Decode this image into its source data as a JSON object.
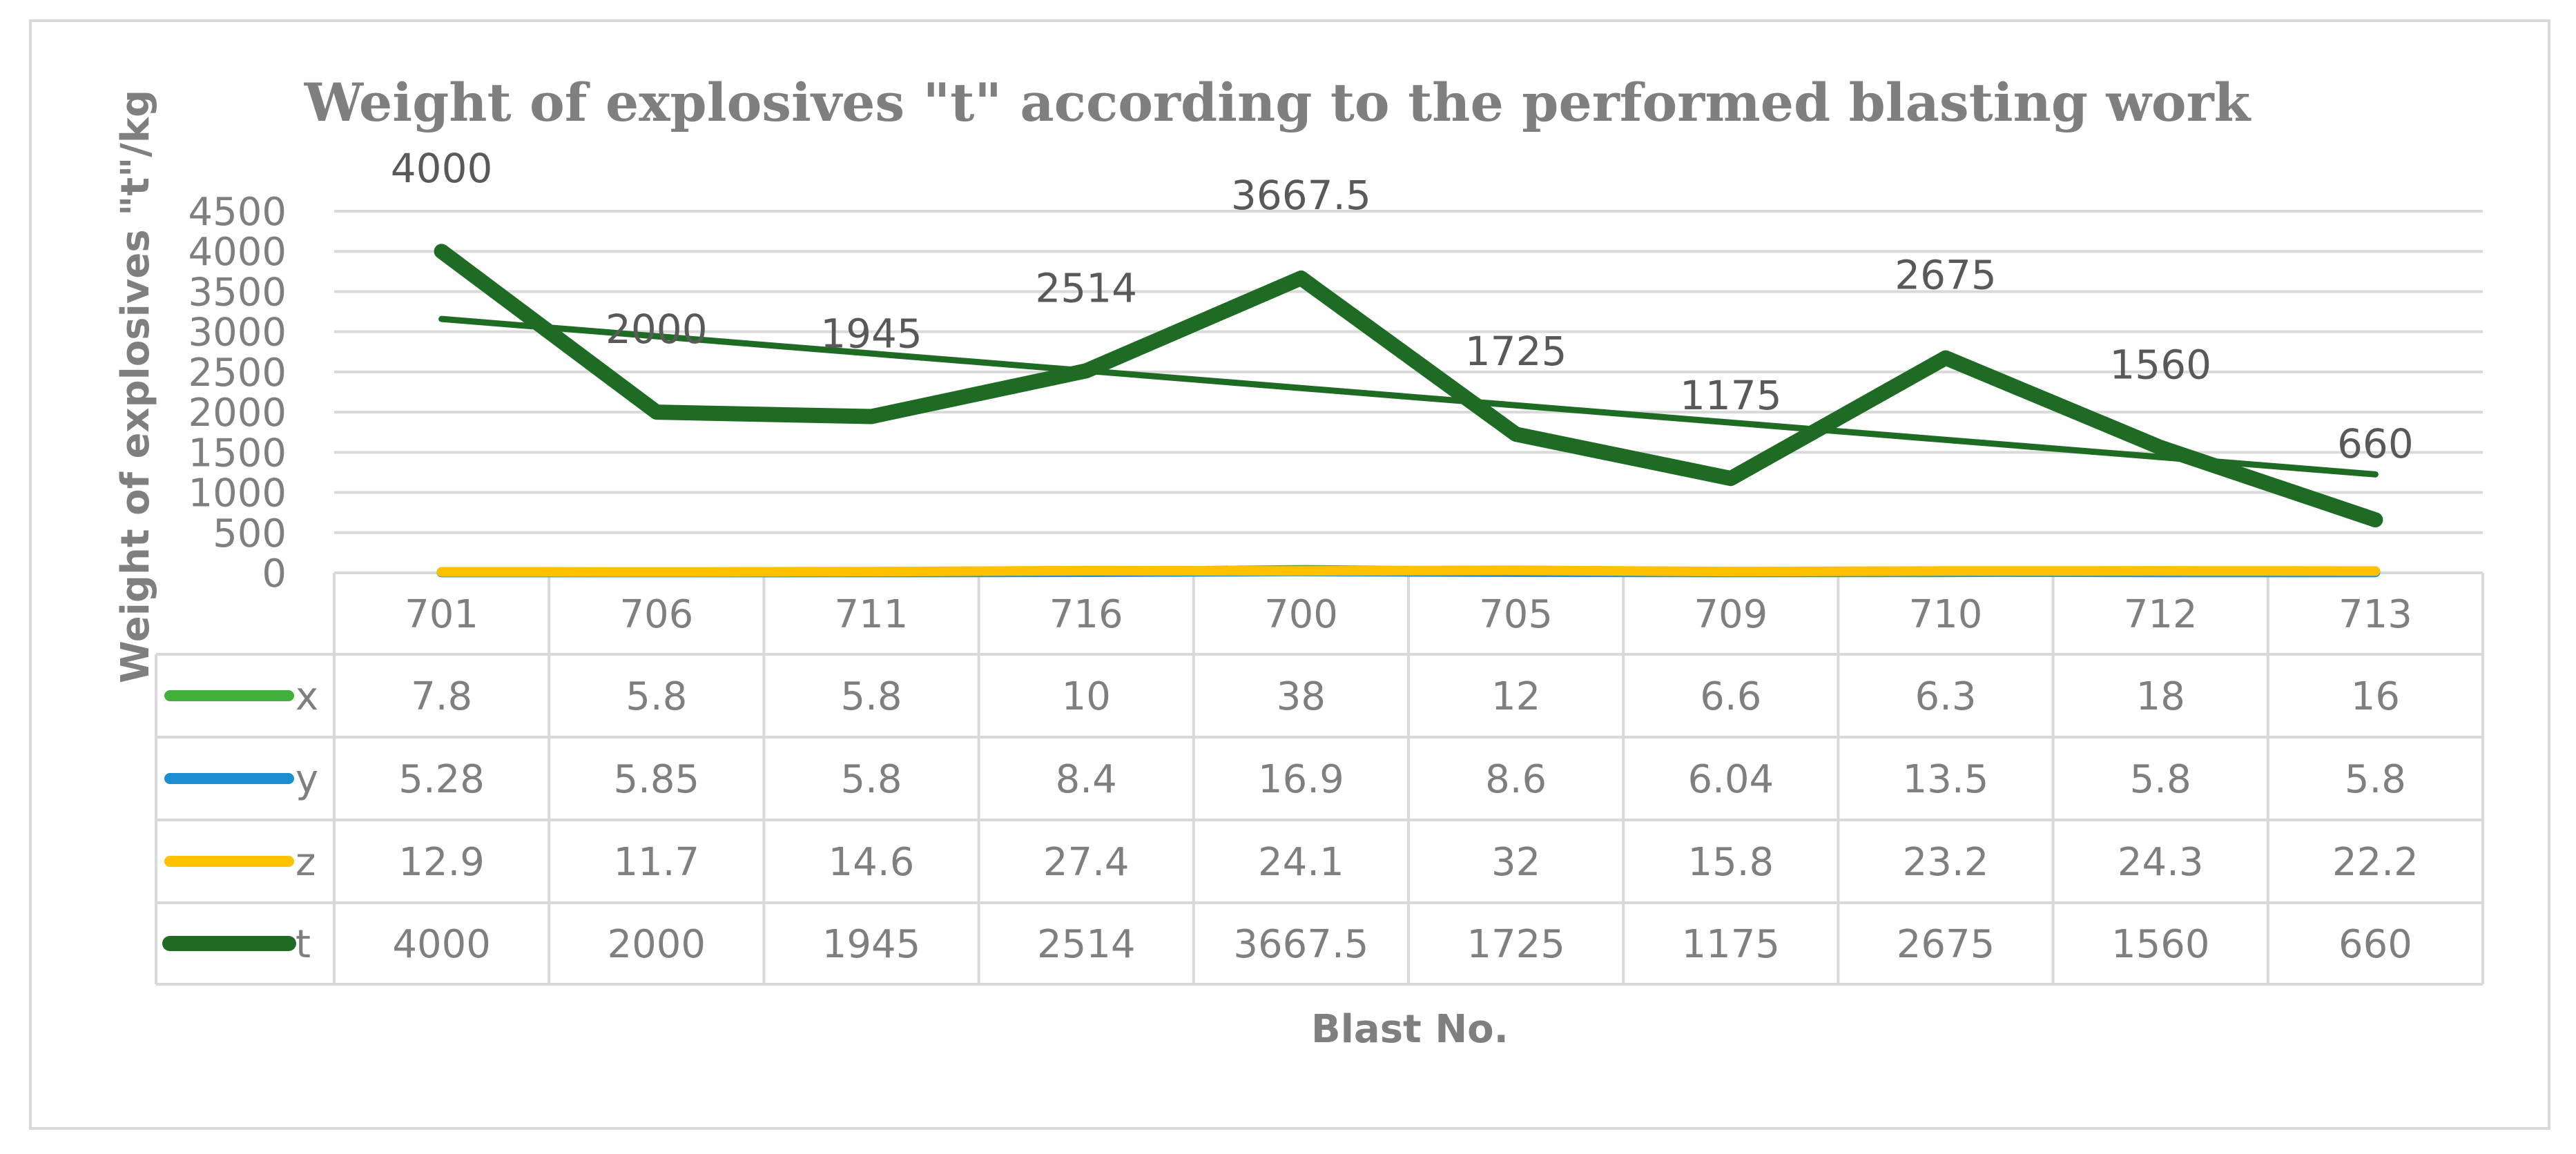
{
  "chart_data": {
    "type": "line",
    "title": "Weight of explosives \"t\" according to the performed blasting work",
    "xlabel": "Blast No.",
    "ylabel": "Weight of explosives \"t\"/kg",
    "ylim": [
      0,
      4500
    ],
    "yticks": [
      "0",
      "500",
      "1000",
      "1500",
      "2000",
      "2500",
      "3000",
      "3500",
      "4000",
      "4500"
    ],
    "ytick_values": [
      0,
      500,
      1000,
      1500,
      2000,
      2500,
      3000,
      3500,
      4000,
      4500
    ],
    "categories": [
      "701",
      "706",
      "711",
      "716",
      "700",
      "705",
      "709",
      "710",
      "712",
      "713"
    ],
    "series": [
      {
        "name": "x",
        "color": "#41b03b",
        "values": [
          7.8,
          5.8,
          5.8,
          10,
          38,
          12,
          6.6,
          6.3,
          18,
          16
        ],
        "labels": [
          "7.8",
          "5.8",
          "5.8",
          "10",
          "38",
          "12",
          "6.6",
          "6.3",
          "18",
          "16"
        ]
      },
      {
        "name": "y",
        "color": "#1b8fd0",
        "values": [
          5.28,
          5.85,
          5.8,
          8.4,
          16.9,
          8.6,
          6.04,
          13.5,
          5.8,
          5.8
        ],
        "labels": [
          "5.28",
          "5.85",
          "5.8",
          "8.4",
          "16.9",
          "8.6",
          "6.04",
          "13.5",
          "5.8",
          "5.8"
        ]
      },
      {
        "name": "z",
        "color": "#ffc000",
        "values": [
          12.9,
          11.7,
          14.6,
          27.4,
          24.1,
          32,
          15.8,
          23.2,
          24.3,
          22.2
        ],
        "labels": [
          "12.9",
          "11.7",
          "14.6",
          "27.4",
          "24.1",
          "32",
          "15.8",
          "23.2",
          "24.3",
          "22.2"
        ]
      },
      {
        "name": "t",
        "color": "#1e6b23",
        "values": [
          4000,
          2000,
          1945,
          2514,
          3667.5,
          1725,
          1175,
          2675,
          1560,
          660
        ],
        "labels": [
          "4000",
          "2000",
          "1945",
          "2514",
          "3667.5",
          "1725",
          "1175",
          "2675",
          "1560",
          "660"
        ]
      }
    ],
    "trendline": {
      "series": "t",
      "type": "linear",
      "color": "#1e6b23"
    },
    "grid": true,
    "legend": "data-table"
  }
}
